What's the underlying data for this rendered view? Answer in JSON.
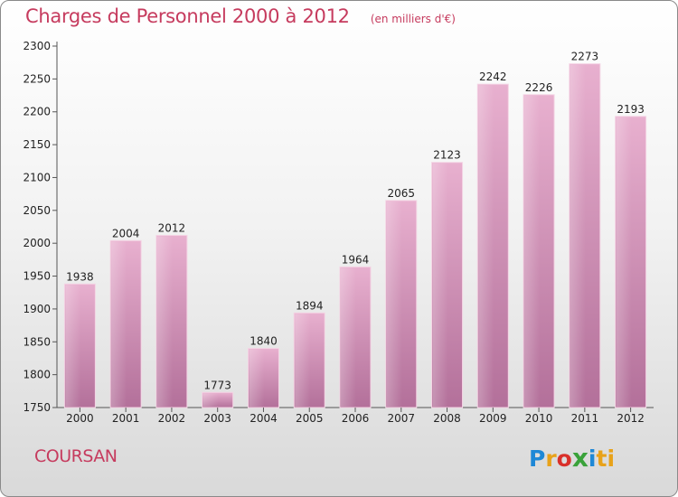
{
  "chart_data": {
    "type": "bar",
    "title": "Charges de Personnel 2000 à 2012",
    "subtitle": "(en milliers d'€)",
    "categories": [
      "2000",
      "2001",
      "2002",
      "2003",
      "2004",
      "2005",
      "2006",
      "2007",
      "2008",
      "2009",
      "2010",
      "2011",
      "2012"
    ],
    "values": [
      1938,
      2004,
      2012,
      1773,
      1840,
      1894,
      1964,
      2065,
      2123,
      2242,
      2226,
      2273,
      2193
    ],
    "ylim": [
      1750,
      2300
    ],
    "yticks": [
      1750,
      1800,
      1850,
      1900,
      1950,
      2000,
      2050,
      2100,
      2150,
      2200,
      2250,
      2300
    ],
    "xlabel": "",
    "ylabel": "",
    "grid": false,
    "bar_color": "#d98ab4"
  },
  "footer": {
    "commune": "COURSAN",
    "brand": {
      "p": "P",
      "r": "r",
      "o": "o",
      "x": "x",
      "i": "i",
      "ti": "ti"
    }
  },
  "colors": {
    "title": "#c63b5e",
    "axis": "#444444"
  }
}
